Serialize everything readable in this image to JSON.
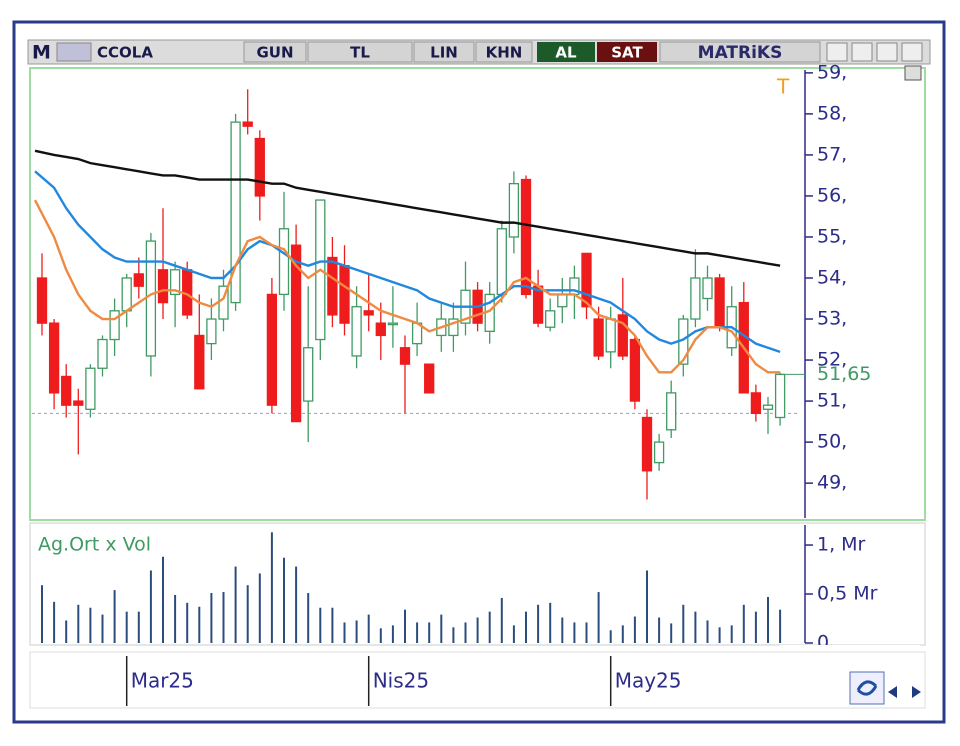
{
  "toolbar": {
    "logo": "M",
    "symbol": "CCOLA",
    "period": "GUN",
    "currency": "TL",
    "scale": "LIN",
    "khn": "KHN",
    "buy": "AL",
    "sell": "SAT",
    "brand": "MATRiKS",
    "marker": "T"
  },
  "chart_data": [
    {
      "type": "candlestick",
      "categories": [
        null,
        null,
        null,
        null,
        null,
        null,
        null,
        "Mar25",
        null,
        null,
        null,
        null,
        null,
        null,
        null,
        null,
        null,
        null,
        null,
        null,
        null,
        null,
        null,
        null,
        null,
        null,
        null,
        "Nis25",
        null,
        null,
        null,
        null,
        null,
        null,
        null,
        null,
        null,
        null,
        null,
        null,
        null,
        null,
        null,
        null,
        null,
        null,
        null,
        "May25",
        null,
        null,
        null,
        null,
        null,
        null,
        null,
        null,
        null,
        null,
        null,
        null,
        null,
        null
      ],
      "open": [
        54.0,
        52.9,
        51.6,
        51.0,
        50.8,
        51.8,
        52.5,
        53.2,
        54.1,
        52.1,
        54.2,
        53.6,
        54.2,
        52.6,
        52.4,
        53.0,
        53.4,
        57.8,
        57.4,
        53.6,
        53.6,
        54.8,
        51.0,
        52.5,
        54.5,
        54.3,
        52.1,
        53.2,
        52.9,
        52.9,
        52.3,
        52.4,
        51.9,
        52.6,
        52.6,
        52.9,
        53.7,
        52.7,
        53.6,
        55.0,
        56.4,
        53.8,
        52.8,
        53.3,
        53.6,
        54.6,
        53.0,
        52.2,
        53.1,
        52.5,
        50.6,
        49.5,
        50.3,
        51.9,
        53.0,
        53.5,
        54.0,
        52.3,
        53.4,
        51.2,
        50.8,
        50.6
      ],
      "high": [
        54.6,
        53.0,
        51.9,
        51.3,
        51.9,
        52.6,
        53.5,
        54.1,
        54.5,
        55.1,
        55.7,
        54.4,
        54.4,
        53.6,
        53.5,
        54.2,
        58.0,
        58.6,
        57.6,
        54.0,
        56.1,
        55.3,
        53.8,
        55.9,
        55.0,
        54.8,
        53.8,
        54.1,
        53.4,
        53.8,
        52.6,
        53.4,
        51.9,
        53.4,
        53.4,
        54.4,
        53.9,
        53.9,
        55.4,
        56.6,
        56.5,
        54.2,
        53.5,
        54.0,
        54.3,
        54.6,
        53.3,
        53.3,
        54.0,
        52.6,
        50.8,
        50.2,
        51.5,
        53.1,
        54.7,
        54.3,
        54.1,
        53.8,
        53.9,
        51.4,
        51.1,
        51.7
      ],
      "low": [
        52.6,
        50.8,
        50.6,
        49.7,
        50.6,
        51.6,
        52.1,
        52.8,
        53.5,
        51.6,
        53.0,
        52.8,
        53.0,
        51.3,
        52.0,
        52.7,
        53.2,
        57.5,
        55.4,
        50.7,
        53.2,
        50.5,
        50.0,
        52.0,
        52.8,
        52.6,
        51.8,
        52.7,
        52.0,
        52.3,
        50.7,
        52.1,
        51.2,
        52.2,
        52.2,
        52.6,
        52.7,
        52.4,
        53.4,
        54.6,
        53.5,
        52.8,
        52.7,
        52.9,
        53.0,
        53.0,
        52.0,
        51.8,
        52.0,
        50.8,
        48.6,
        49.3,
        50.1,
        51.6,
        52.8,
        53.2,
        52.7,
        52.1,
        51.2,
        50.5,
        50.2,
        50.4
      ],
      "close": [
        52.9,
        51.2,
        50.9,
        50.9,
        51.8,
        52.5,
        53.2,
        54.0,
        53.8,
        54.9,
        53.4,
        54.2,
        53.1,
        51.3,
        53.0,
        53.8,
        57.8,
        57.7,
        56.0,
        50.9,
        55.2,
        50.5,
        52.3,
        55.9,
        53.1,
        52.9,
        53.3,
        53.1,
        52.6,
        52.9,
        51.9,
        52.9,
        51.2,
        53.0,
        53.0,
        53.7,
        52.9,
        53.6,
        55.2,
        56.3,
        53.6,
        52.9,
        53.2,
        53.6,
        54.0,
        53.3,
        52.1,
        53.0,
        52.1,
        51.0,
        49.3,
        50.0,
        51.2,
        53.0,
        54.0,
        54.0,
        52.8,
        53.3,
        51.2,
        50.7,
        50.9,
        51.65
      ],
      "up_color": "#3f9a63",
      "down_color": "#ee1c1c",
      "series": [
        {
          "color": "#111111",
          "values": [
            57.1,
            57.0,
            56.95,
            56.9,
            56.8,
            56.75,
            56.7,
            56.65,
            56.6,
            56.55,
            56.5,
            56.5,
            56.45,
            56.4,
            56.4,
            56.4,
            56.4,
            56.4,
            56.35,
            56.3,
            56.3,
            56.2,
            56.15,
            56.1,
            56.05,
            56.0,
            55.95,
            55.9,
            55.85,
            55.8,
            55.75,
            55.7,
            55.65,
            55.6,
            55.55,
            55.5,
            55.45,
            55.4,
            55.35,
            55.35,
            55.3,
            55.25,
            55.2,
            55.15,
            55.1,
            55.05,
            55.0,
            54.95,
            54.9,
            54.85,
            54.8,
            54.75,
            54.7,
            54.65,
            54.6,
            54.6,
            54.55,
            54.5,
            54.45,
            54.4,
            54.35,
            54.3
          ]
        },
        {
          "color": "#2288dd",
          "values": [
            56.6,
            56.2,
            55.7,
            55.3,
            55.0,
            54.7,
            54.5,
            54.4,
            54.4,
            54.4,
            54.4,
            54.3,
            54.2,
            54.1,
            54.0,
            54.0,
            54.3,
            54.7,
            54.9,
            54.8,
            54.6,
            54.4,
            54.3,
            54.4,
            54.4,
            54.3,
            54.2,
            54.1,
            54.0,
            53.9,
            53.8,
            53.7,
            53.5,
            53.4,
            53.3,
            53.3,
            53.3,
            53.4,
            53.6,
            53.8,
            53.8,
            53.7,
            53.7,
            53.7,
            53.7,
            53.6,
            53.5,
            53.4,
            53.2,
            53.0,
            52.7,
            52.5,
            52.4,
            52.5,
            52.7,
            52.8,
            52.8,
            52.8,
            52.6,
            52.4,
            52.3,
            52.2
          ]
        },
        {
          "color": "#f08a40",
          "values": [
            55.9,
            55.0,
            54.2,
            53.6,
            53.2,
            53.0,
            53.0,
            53.2,
            53.4,
            53.6,
            53.7,
            53.7,
            53.6,
            53.4,
            53.3,
            53.5,
            54.3,
            54.9,
            55.0,
            54.8,
            54.7,
            54.3,
            54.0,
            54.2,
            54.0,
            53.8,
            53.6,
            53.4,
            53.2,
            53.1,
            53.0,
            52.9,
            52.7,
            52.8,
            52.9,
            53.0,
            53.1,
            53.2,
            53.5,
            53.9,
            54.0,
            53.8,
            53.6,
            53.6,
            53.6,
            53.4,
            53.1,
            53.0,
            52.9,
            52.6,
            52.1,
            51.7,
            51.7,
            52.0,
            52.5,
            52.8,
            52.8,
            52.7,
            52.3,
            51.9,
            51.7,
            51.7
          ]
        }
      ],
      "ylim": [
        48.15,
        59.07
      ],
      "yticks": [
        {
          "value": 49,
          "label": "49,"
        },
        {
          "value": 50,
          "label": "50,"
        },
        {
          "value": 51,
          "label": "51,"
        },
        {
          "value": 52,
          "label": "52,"
        },
        {
          "value": 53,
          "label": "53,"
        },
        {
          "value": 54,
          "label": "54,"
        },
        {
          "value": 55,
          "label": "55,"
        },
        {
          "value": 56,
          "label": "56,"
        },
        {
          "value": 57,
          "label": "57,"
        },
        {
          "value": 58,
          "label": "58,"
        },
        {
          "value": 59,
          "label": "59,"
        }
      ],
      "last_price": {
        "value": 51.65,
        "label": "51,65"
      },
      "hline": 50.7
    },
    {
      "type": "bar",
      "title": "Ag.Ort x Vol",
      "color": "#2b4d7e",
      "values": [
        0.59,
        0.42,
        0.23,
        0.39,
        0.36,
        0.29,
        0.54,
        0.32,
        0.32,
        0.74,
        0.88,
        0.49,
        0.41,
        0.37,
        0.51,
        0.52,
        0.78,
        0.59,
        0.71,
        1.13,
        0.87,
        0.78,
        0.51,
        0.36,
        0.36,
        0.21,
        0.23,
        0.29,
        0.15,
        0.18,
        0.34,
        0.21,
        0.21,
        0.29,
        0.16,
        0.21,
        0.26,
        0.32,
        0.46,
        0.18,
        0.32,
        0.39,
        0.41,
        0.26,
        0.21,
        0.21,
        0.52,
        0.13,
        0.18,
        0.27,
        0.74,
        0.26,
        0.2,
        0.39,
        0.32,
        0.23,
        0.16,
        0.18,
        0.39,
        0.32,
        0.47,
        0.34
      ],
      "ylim": [
        0,
        1.235
      ],
      "yticks": [
        0,
        {
          "value": 0.5,
          "label": "0,5 Mr"
        },
        {
          "value": 1,
          "label": "1, Mr"
        }
      ]
    }
  ]
}
